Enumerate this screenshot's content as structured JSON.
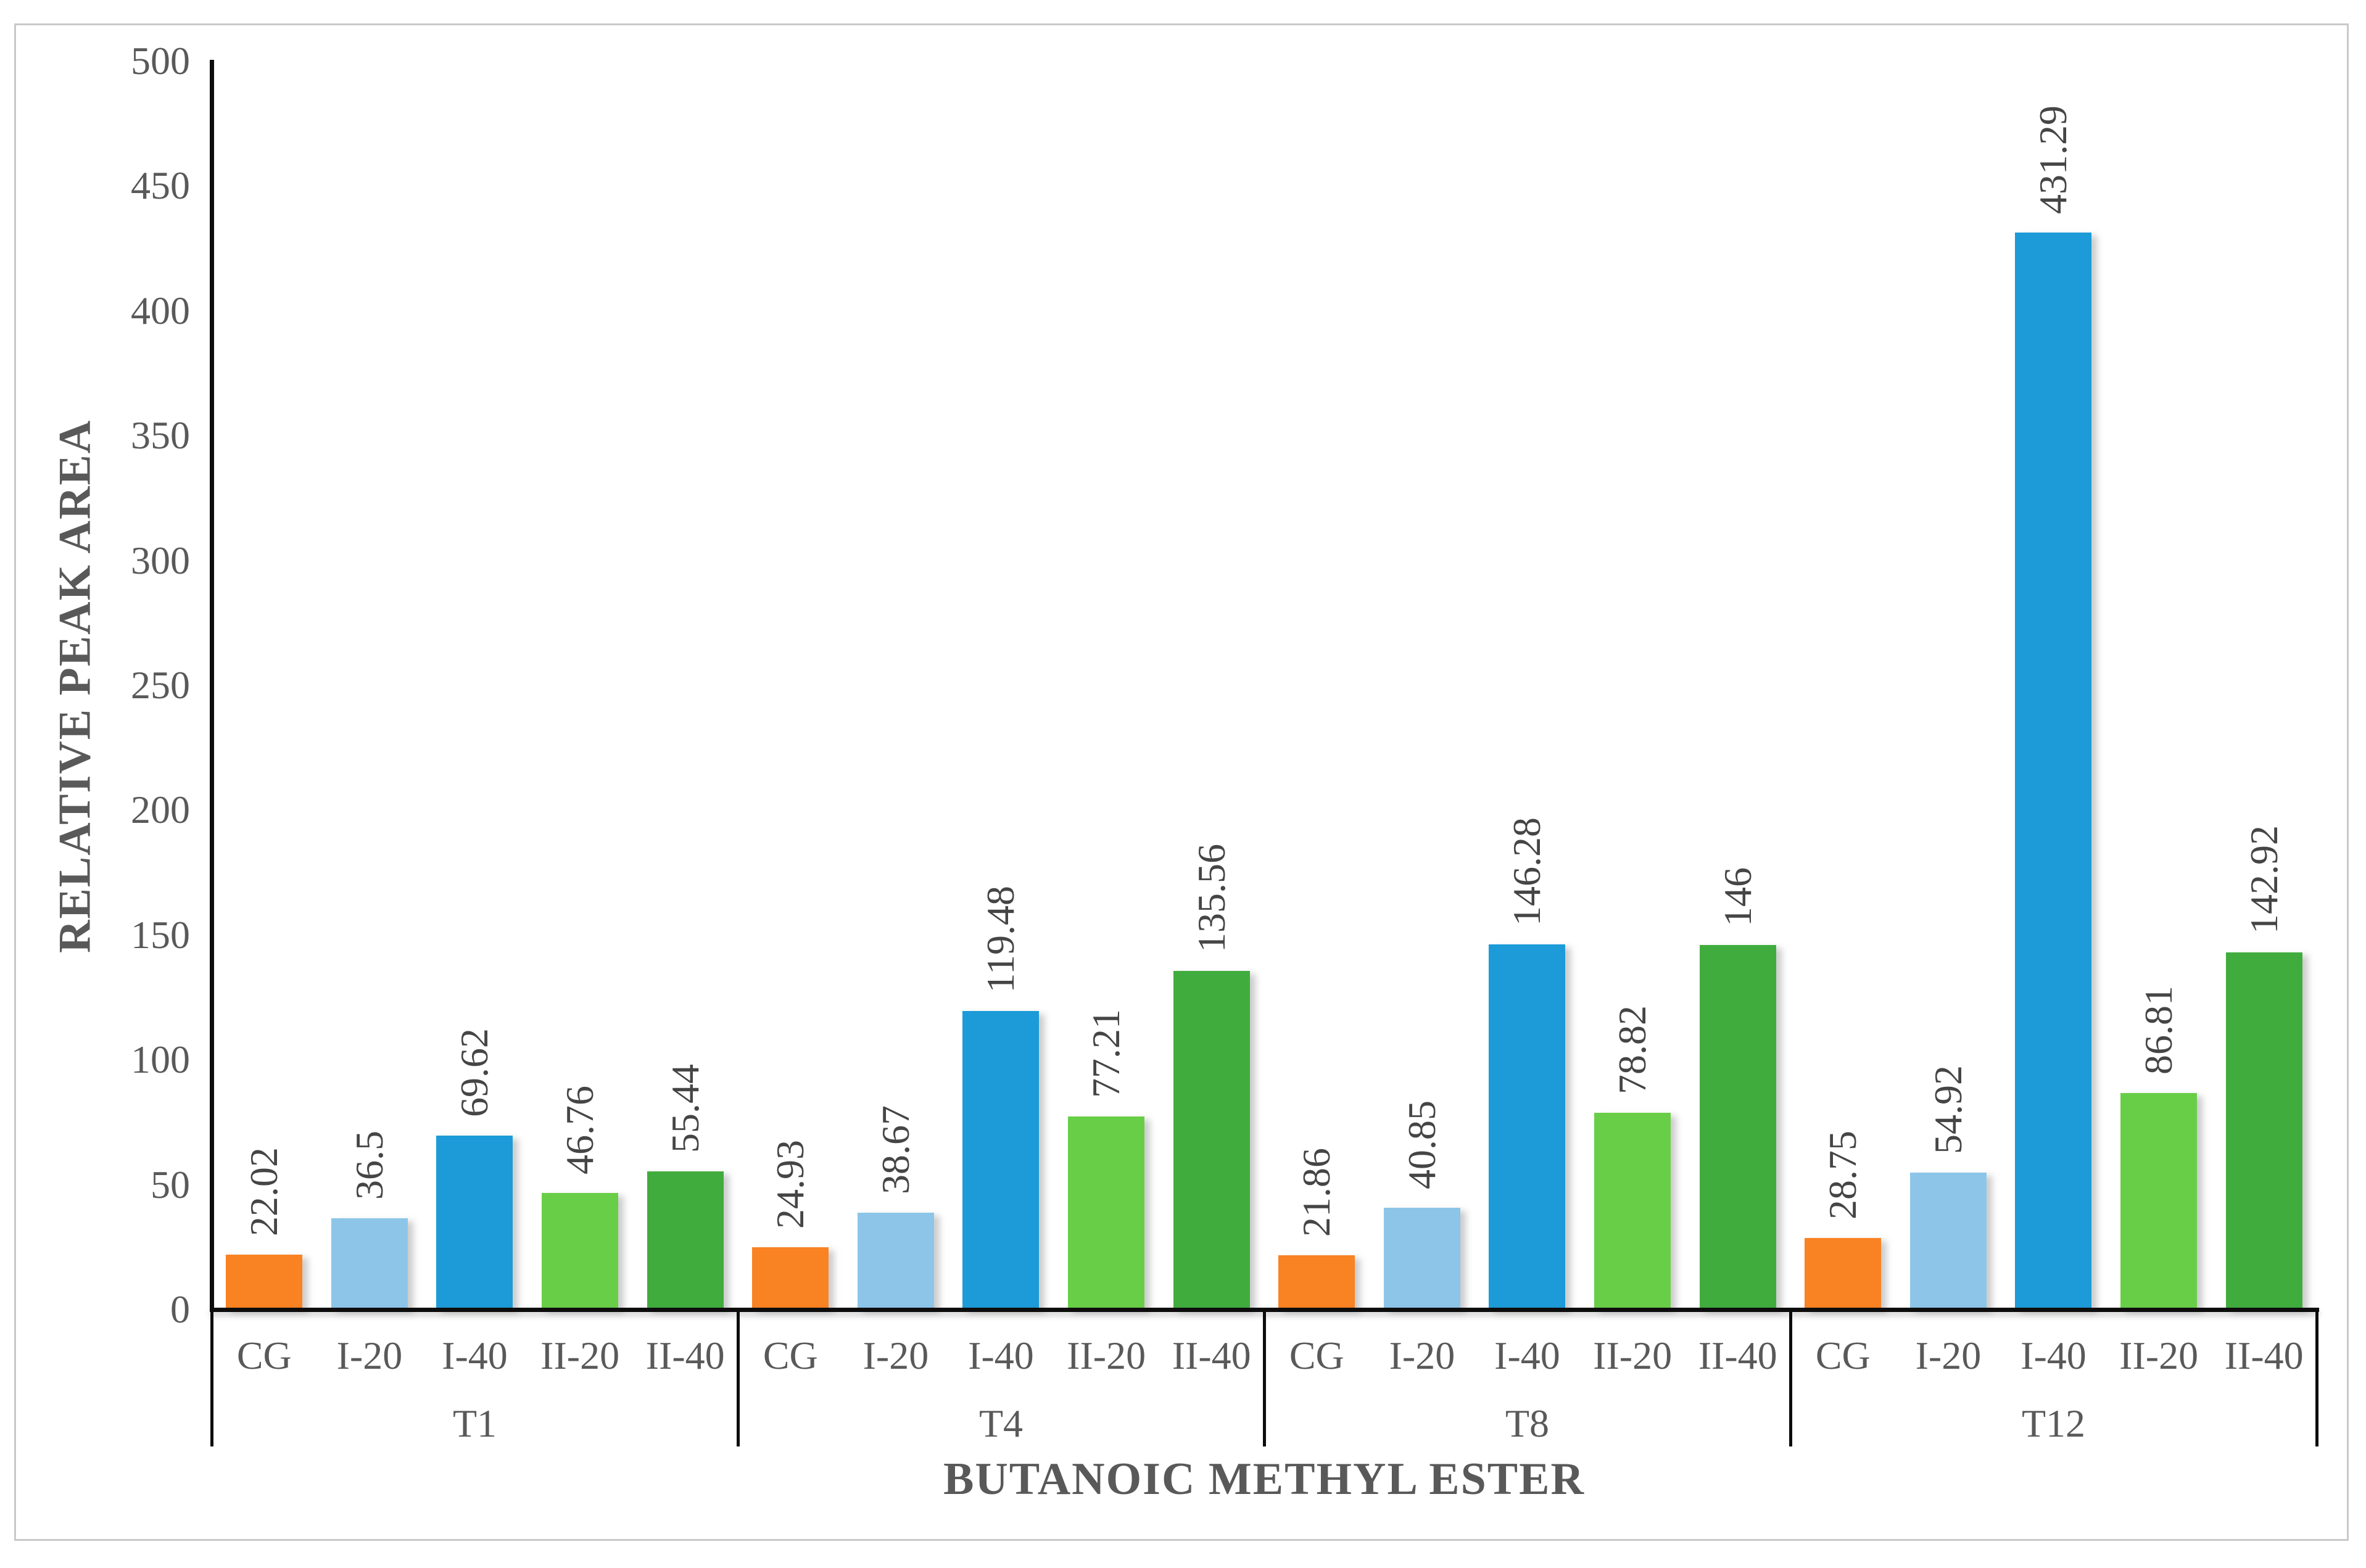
{
  "figure": {
    "background_color": "#ffffff",
    "frame_border_color": "#c9c9c9",
    "axis_line_color": "#0d0d0d",
    "text_color": "#595959",
    "value_label_color": "#454545"
  },
  "chart_data": {
    "type": "bar",
    "title": "",
    "xlabel": "BUTANOIC METHYL ESTER",
    "ylabel": "RELATIVE PEAK AREA",
    "ylim": [
      0,
      500
    ],
    "ytick_step": 50,
    "yticks": [
      "500",
      "450",
      "400",
      "350",
      "300",
      "250",
      "200",
      "150",
      "100",
      "50",
      "0"
    ],
    "ytick_values": [
      500,
      450,
      400,
      350,
      300,
      250,
      200,
      150,
      100,
      50,
      0
    ],
    "grid": false,
    "legend_position": "none",
    "bar_categories": [
      "CG",
      "I-20",
      "I-40",
      "II-20",
      "II-40"
    ],
    "bar_colors": [
      "#f98223",
      "#8dc5e9",
      "#1c9bd8",
      "#69ce47",
      "#41ac3e"
    ],
    "group_categories": [
      "T1",
      "T4",
      "T8",
      "T12"
    ],
    "groups": [
      {
        "label": "T1",
        "values": [
          22.02,
          36.5,
          69.62,
          46.76,
          55.44
        ],
        "value_labels": [
          "22.02",
          "36.5",
          "69.62",
          "46.76",
          "55.44"
        ]
      },
      {
        "label": "T4",
        "values": [
          24.93,
          38.67,
          119.48,
          77.21,
          135.56
        ],
        "value_labels": [
          "24.93",
          "38.67",
          "119.48",
          "77.21",
          "135.56"
        ]
      },
      {
        "label": "T8",
        "values": [
          21.86,
          40.85,
          146.28,
          78.82,
          146
        ],
        "value_labels": [
          "21.86",
          "40.85",
          "146.28",
          "78.82",
          "146"
        ]
      },
      {
        "label": "T12",
        "values": [
          28.75,
          54.92,
          431.29,
          86.81,
          142.92
        ],
        "value_labels": [
          "28.75",
          "54.92",
          "431.29",
          "86.81",
          "142.92"
        ]
      }
    ]
  }
}
